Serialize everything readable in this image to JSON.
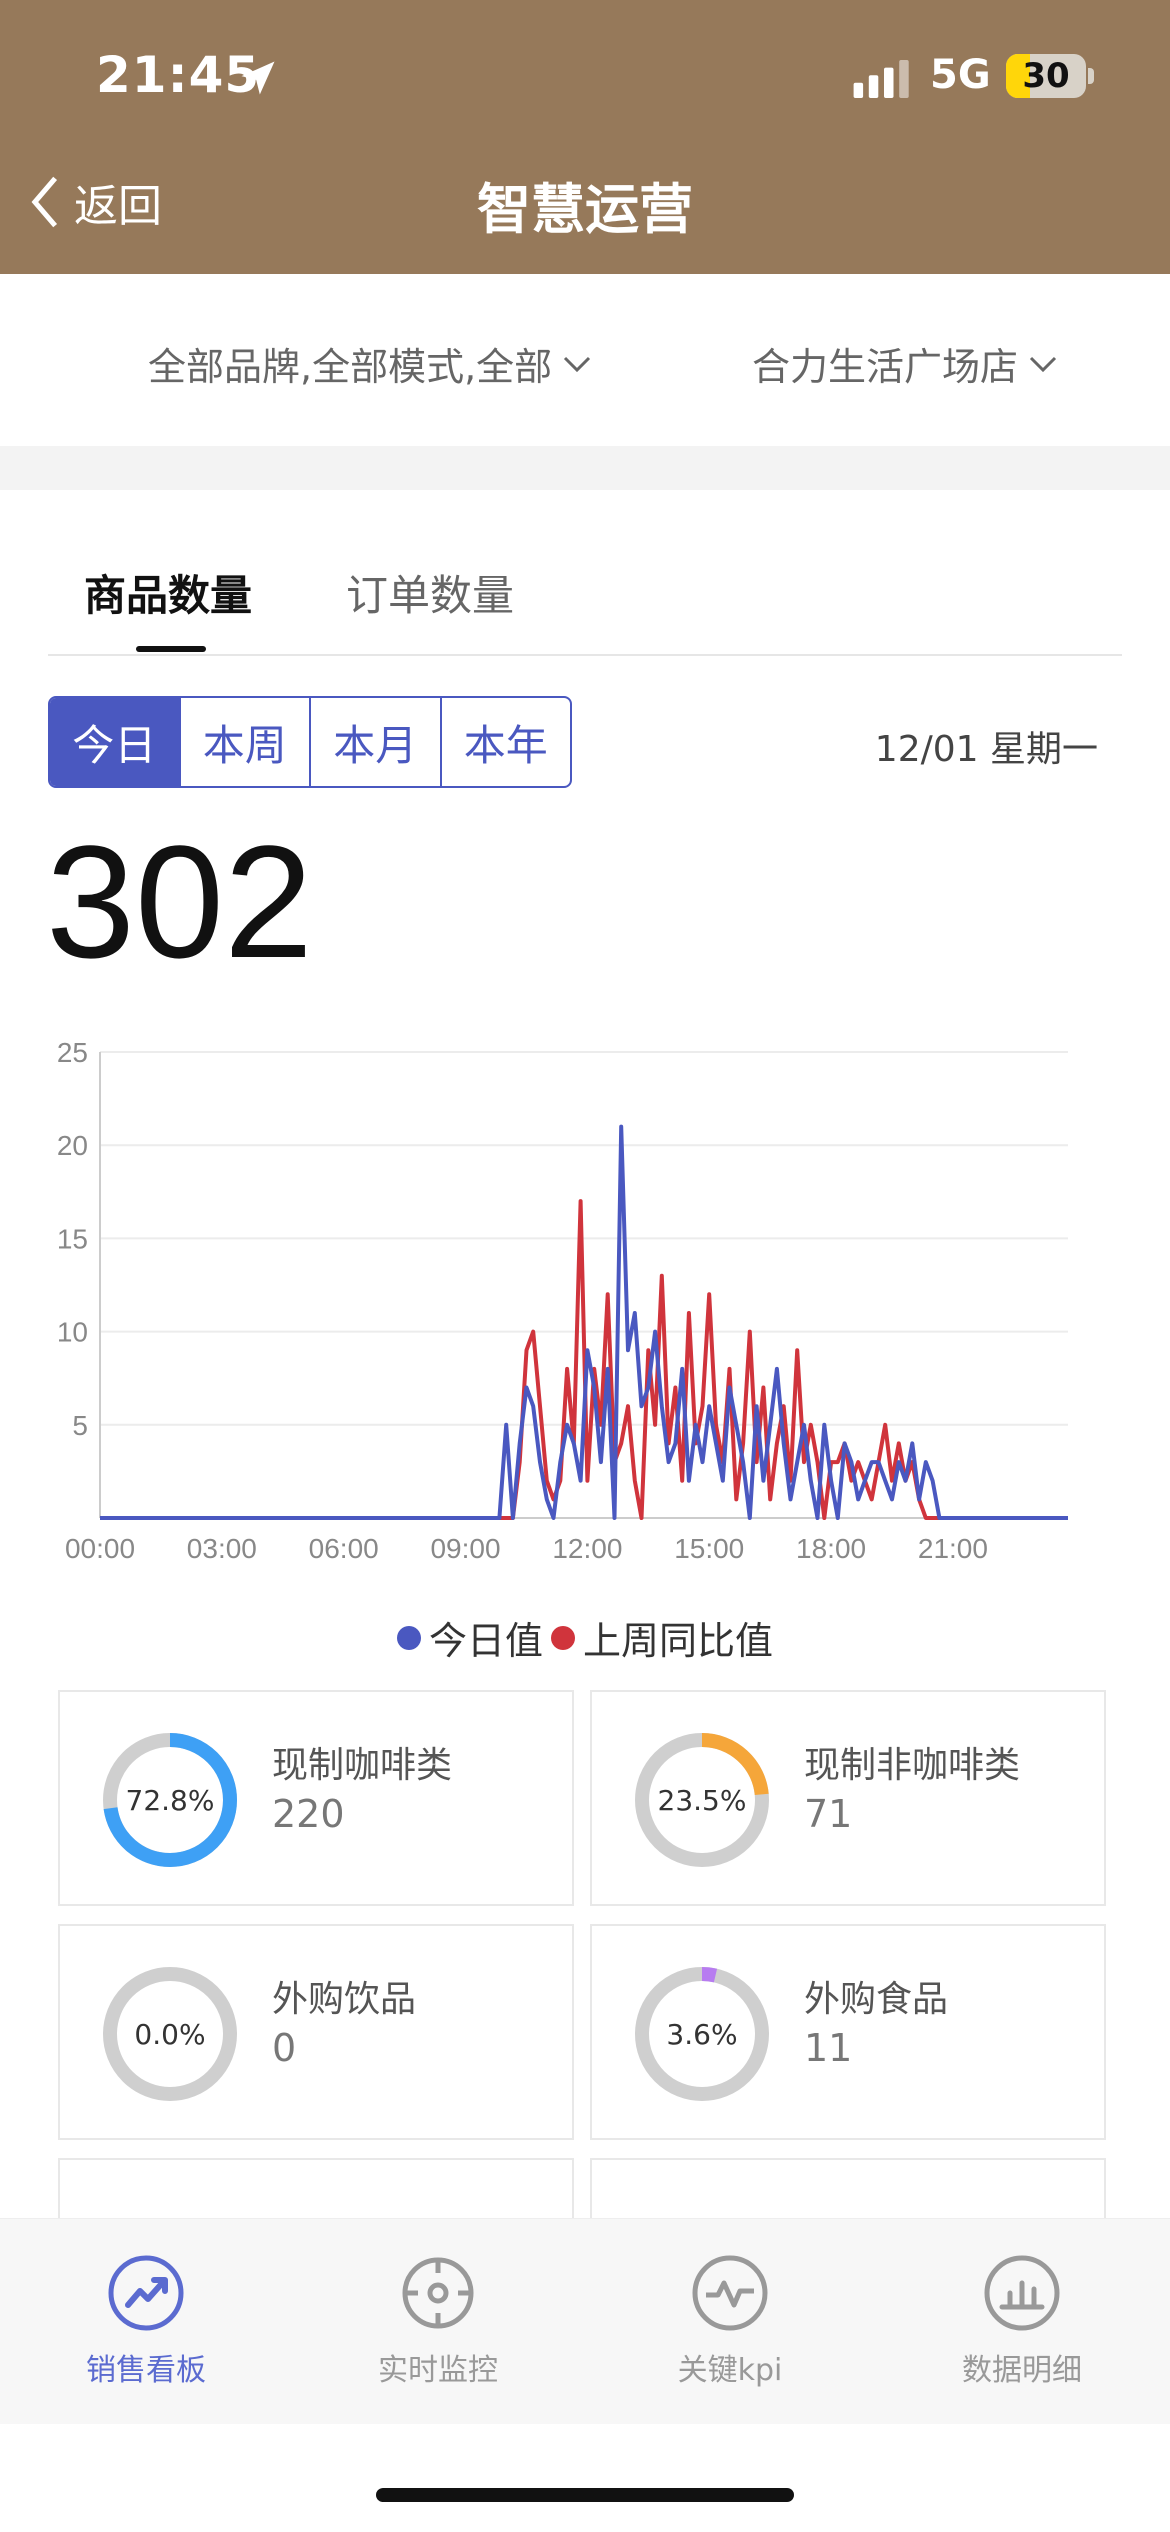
{
  "status": {
    "time": "21:45",
    "network": "5G",
    "battery": "30",
    "battery_level": 0.3
  },
  "nav": {
    "back_label": "返回",
    "title": "智慧运营"
  },
  "filters": {
    "brand": "全部品牌,全部模式,全部",
    "store": "合力生活广场店"
  },
  "tabs": [
    "商品数量",
    "订单数量"
  ],
  "periods": [
    "今日",
    "本周",
    "本月",
    "本年"
  ],
  "date": "12/01 星期一",
  "total": "302",
  "chart_data": {
    "type": "line",
    "ylim": [
      0,
      25
    ],
    "yticks": [
      "25",
      "20",
      "15",
      "10",
      "5"
    ],
    "xticks": [
      "00:00",
      "03:00",
      "06:00",
      "09:00",
      "12:00",
      "15:00",
      "18:00",
      "21:00"
    ],
    "x_interval_minutes": 10,
    "series": [
      {
        "name": "今日值",
        "color": "#4a58c0",
        "values": [
          0,
          0,
          0,
          0,
          0,
          0,
          0,
          0,
          0,
          0,
          0,
          0,
          0,
          0,
          0,
          0,
          0,
          0,
          0,
          0,
          0,
          0,
          0,
          0,
          0,
          0,
          0,
          0,
          0,
          0,
          0,
          0,
          0,
          0,
          0,
          0,
          0,
          0,
          0,
          0,
          0,
          0,
          0,
          0,
          0,
          0,
          0,
          0,
          0,
          0,
          0,
          0,
          0,
          0,
          0,
          0,
          0,
          0,
          0,
          0,
          5,
          0,
          4,
          7,
          6,
          3,
          1,
          0,
          3,
          5,
          4,
          2,
          9,
          7,
          3,
          8,
          0,
          21,
          9,
          11,
          6,
          7,
          10,
          6,
          3,
          4,
          8,
          2,
          5,
          3,
          6,
          4,
          2,
          7,
          5,
          3,
          0,
          6,
          2,
          5,
          8,
          4,
          1,
          3,
          5,
          2,
          0,
          5,
          2,
          0,
          4,
          3,
          1,
          2,
          3,
          3,
          2,
          1,
          3,
          2,
          4,
          1,
          3,
          2,
          0,
          0,
          0,
          0,
          0,
          0,
          0,
          0,
          0,
          0,
          0,
          0,
          0,
          0,
          0,
          0,
          0,
          0,
          0,
          0
        ]
      },
      {
        "name": "上周同比值",
        "color": "#d0343c",
        "values": [
          0,
          0,
          0,
          0,
          0,
          0,
          0,
          0,
          0,
          0,
          0,
          0,
          0,
          0,
          0,
          0,
          0,
          0,
          0,
          0,
          0,
          0,
          0,
          0,
          0,
          0,
          0,
          0,
          0,
          0,
          0,
          0,
          0,
          0,
          0,
          0,
          0,
          0,
          0,
          0,
          0,
          0,
          0,
          0,
          0,
          0,
          0,
          0,
          0,
          0,
          0,
          0,
          0,
          0,
          0,
          0,
          0,
          0,
          0,
          0,
          0,
          0,
          3,
          9,
          10,
          6,
          2,
          1,
          2,
          8,
          4,
          17,
          2,
          8,
          5,
          12,
          3,
          4,
          6,
          2,
          0,
          9,
          5,
          13,
          4,
          7,
          2,
          11,
          4,
          6,
          12,
          5,
          3,
          8,
          1,
          4,
          10,
          3,
          7,
          1,
          4,
          6,
          2,
          9,
          3,
          5,
          3,
          0,
          3,
          3,
          4,
          2,
          3,
          2,
          1,
          3,
          5,
          2,
          4,
          2,
          3,
          1,
          0,
          0,
          0,
          0,
          0,
          0,
          0,
          0,
          0,
          0,
          0,
          0,
          0,
          0,
          0,
          0,
          0,
          0,
          0,
          0,
          0,
          0
        ]
      }
    ]
  },
  "legend": [
    "今日值",
    "上周同比值"
  ],
  "categories": [
    {
      "name": "现制咖啡类",
      "value": "220",
      "percent_label": "72.8%",
      "percent": 0.728,
      "color": "#3ea0f5"
    },
    {
      "name": "现制非咖啡类",
      "value": "71",
      "percent_label": "23.5%",
      "percent": 0.235,
      "color": "#f5a63a"
    },
    {
      "name": "外购饮品",
      "value": "0",
      "percent_label": "0.0%",
      "percent": 0.0,
      "color": "#8e6ad8"
    },
    {
      "name": "外购食品",
      "value": "11",
      "percent_label": "3.6%",
      "percent": 0.036,
      "color": "#b77cf0"
    }
  ],
  "tabbar": [
    {
      "label": "销售看板",
      "icon": "trend-icon"
    },
    {
      "label": "实时监控",
      "icon": "target-icon"
    },
    {
      "label": "关键kpi",
      "icon": "pulse-icon"
    },
    {
      "label": "数据明细",
      "icon": "bar-chart-icon"
    }
  ]
}
